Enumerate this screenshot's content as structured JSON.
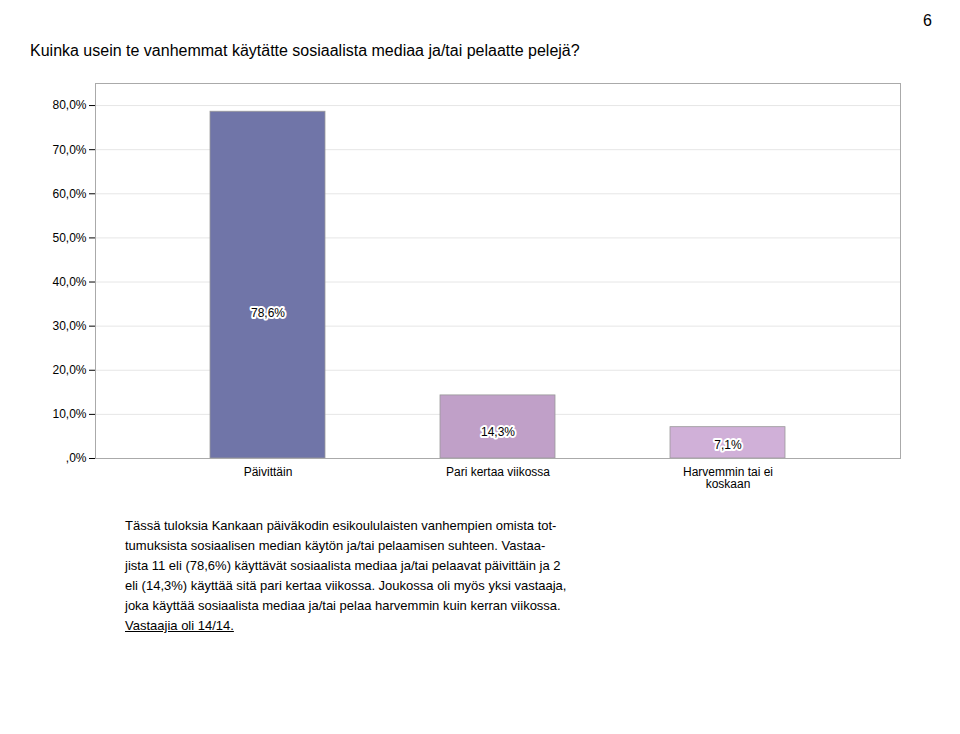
{
  "chart_data": {
    "type": "bar",
    "title": "Kuinka usein te vanhemmat käytätte sosiaalista mediaa ja/tai pelaatte pelejä?",
    "annotations": [
      "6",
      "Tässä tuloksia Kankaan päiväkodin esikoululaisten vanhempien omista tot-",
      "tumuksista sosiaalisen median käytön ja/tai pelaamisen suhteen. Vastaa-",
      "jista 11 eli (78,6%) käyttävät sosiaalista mediaa ja/tai pelaavat päivittäin ja 2",
      "eli (14,3%) käyttää sitä pari kertaa viikossa. Joukossa oli myös yksi vastaaja,",
      "joka käyttää sosiaalista mediaa ja/tai pelaa harvemmin kuin kerran viikossa.",
      "Vastaajia oli 14/14."
    ],
    "categories": [
      "Päivittäin",
      "Pari kertaa viikossa",
      "Harvemmin tai ei\nkoskaan"
    ],
    "values": [
      78.6,
      14.3,
      7.1
    ],
    "value_labels": [
      "78,6%",
      "14,3%",
      "7,1%"
    ],
    "data_labels": true,
    "colors": [
      "#7075A8",
      "#C0A0C8",
      "#D0B0D8"
    ],
    "ylim": [
      0,
      85
    ],
    "yticks": [
      {
        "value": 0,
        "label": ",0%"
      },
      {
        "value": 10,
        "label": "10,0%"
      },
      {
        "value": 20,
        "label": "20,0%"
      },
      {
        "value": 30,
        "label": "30,0%"
      },
      {
        "value": 40,
        "label": "40,0%"
      },
      {
        "value": 50,
        "label": "50,0%"
      },
      {
        "value": 60,
        "label": "60,0%"
      },
      {
        "value": 70,
        "label": "70,0%"
      },
      {
        "value": 80,
        "label": "80,0%"
      }
    ],
    "grid": true
  }
}
